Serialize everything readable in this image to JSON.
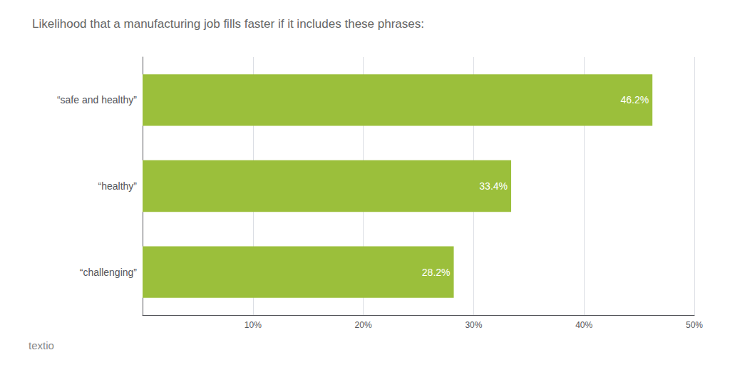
{
  "chart_data": {
    "type": "bar",
    "orientation": "horizontal",
    "title": "Likelihood that a manufacturing job fills faster if it includes these phrases:",
    "categories": [
      "“challenging”",
      "“healthy”",
      "“safe and healthy”"
    ],
    "values": [
      28.2,
      33.4,
      46.2
    ],
    "value_labels": [
      "28.2%",
      "33.4%",
      "46.2%"
    ],
    "data_labels": true,
    "color": "#9BBF3B",
    "xlim": [
      0,
      50
    ],
    "xticks": [
      {
        "value": 10,
        "label": "10%"
      },
      {
        "value": 20,
        "label": "20%"
      },
      {
        "value": 30,
        "label": "30%"
      },
      {
        "value": 40,
        "label": "40%"
      },
      {
        "value": 50,
        "label": "50%"
      }
    ],
    "grid": true,
    "annotations": [
      "textio"
    ]
  }
}
